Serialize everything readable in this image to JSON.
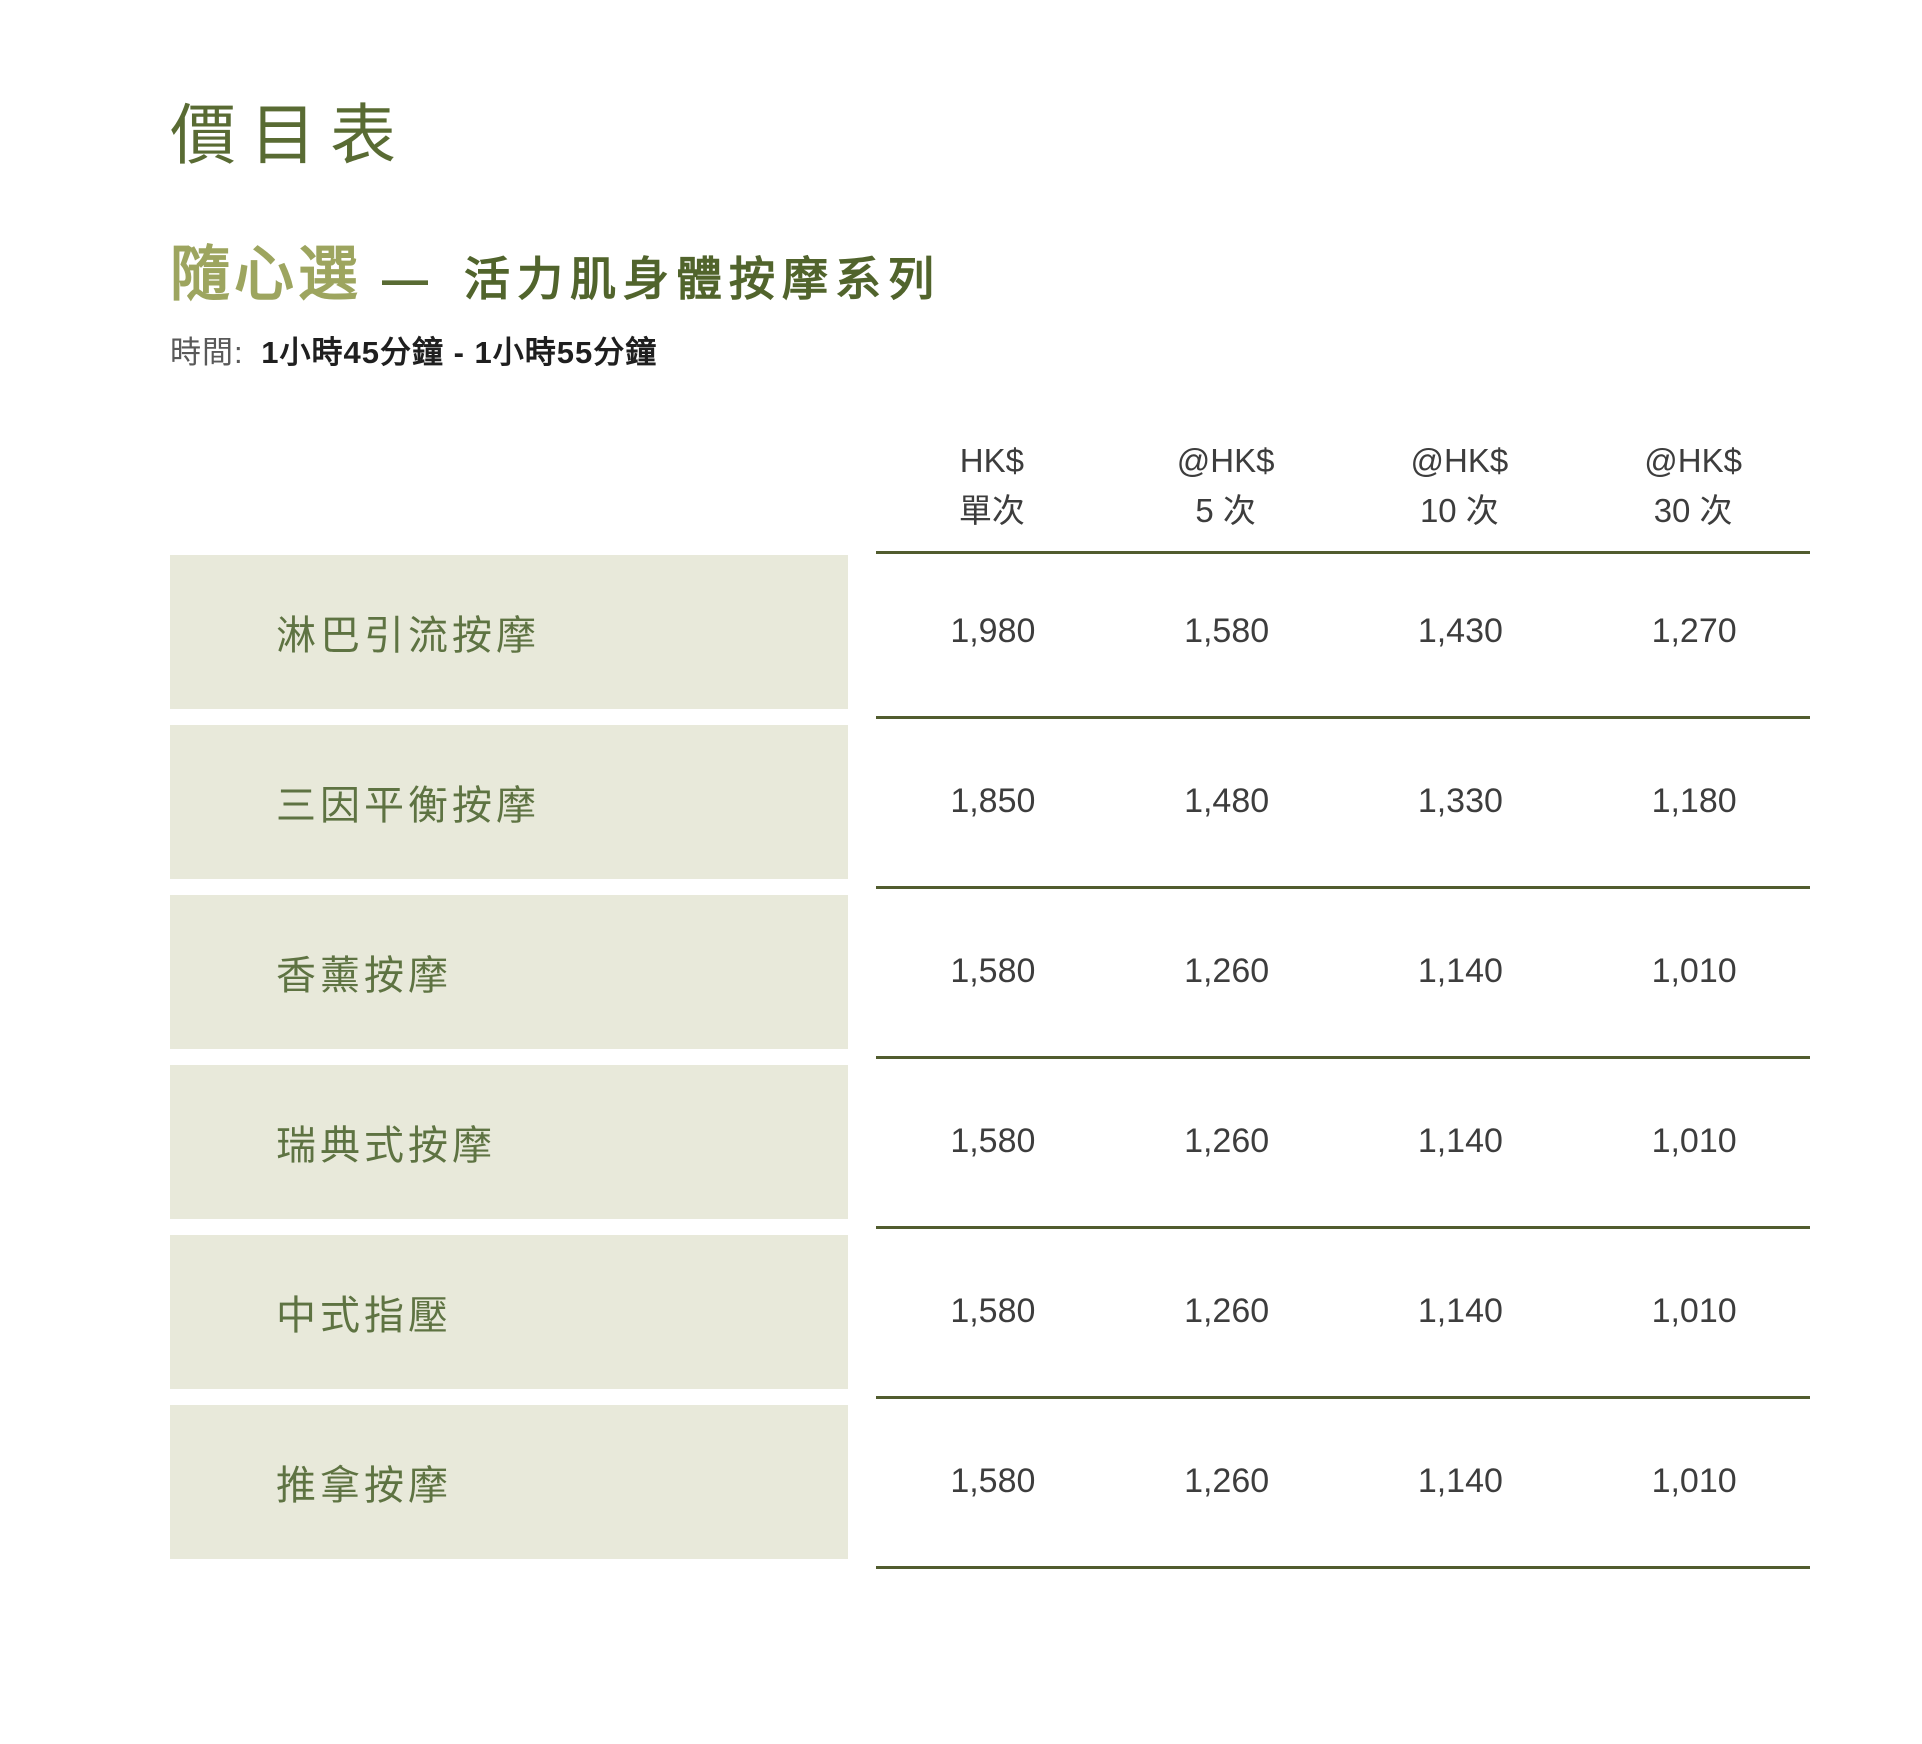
{
  "page": {
    "title": "價目表"
  },
  "series": {
    "name": "隨心選",
    "dash": "—",
    "subtitle": "活力肌身體按摩系列",
    "duration_label": "時間:",
    "duration_value": "1小時45分鐘 - 1小時55分鐘"
  },
  "price_table": {
    "currency": "HK$",
    "columns": [
      {
        "line1": "HK$",
        "line2": "單次"
      },
      {
        "line1": "@HK$",
        "line2": "5 次"
      },
      {
        "line1": "@HK$",
        "line2": "10 次"
      },
      {
        "line1": "@HK$",
        "line2": "30 次"
      }
    ],
    "rows": [
      {
        "name": "淋巴引流按摩",
        "prices": [
          "1,980",
          "1,580",
          "1,430",
          "1,270"
        ]
      },
      {
        "name": "三因平衡按摩",
        "prices": [
          "1,850",
          "1,480",
          "1,330",
          "1,180"
        ]
      },
      {
        "name": "香薰按摩",
        "prices": [
          "1,580",
          "1,260",
          "1,140",
          "1,010"
        ]
      },
      {
        "name": "瑞典式按摩",
        "prices": [
          "1,580",
          "1,260",
          "1,140",
          "1,010"
        ]
      },
      {
        "name": "中式指壓",
        "prices": [
          "1,580",
          "1,260",
          "1,140",
          "1,010"
        ]
      },
      {
        "name": "推拿按摩",
        "prices": [
          "1,580",
          "1,260",
          "1,140",
          "1,010"
        ]
      }
    ]
  },
  "colors": {
    "title_green": "#596b33",
    "series_light_green": "#9da55f",
    "subtitle_dark_green": "#51642c",
    "label_green": "#5e7342",
    "row_background": "#e8e9da",
    "separator_line": "#515c2e",
    "price_text": "#3d3d3d"
  }
}
